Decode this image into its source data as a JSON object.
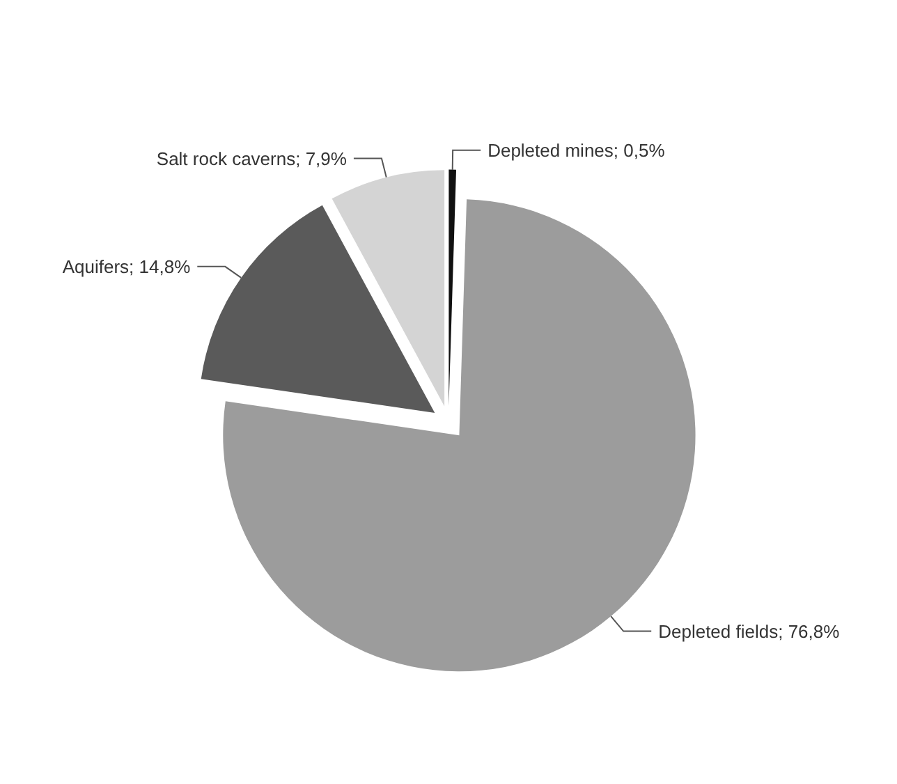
{
  "chart_data": {
    "type": "pie",
    "categories": [
      "Depleted mines",
      "Depleted fields",
      "Aquifers",
      "Salt rock caverns"
    ],
    "values": [
      0.5,
      76.8,
      14.8,
      7.9
    ],
    "value_labels": [
      "0,5%",
      "76,8%",
      "14,8%",
      "7,9%"
    ],
    "colors": [
      "#111111",
      "#9c9c9c",
      "#5a5a5a",
      "#d4d4d4"
    ],
    "legend": false
  }
}
